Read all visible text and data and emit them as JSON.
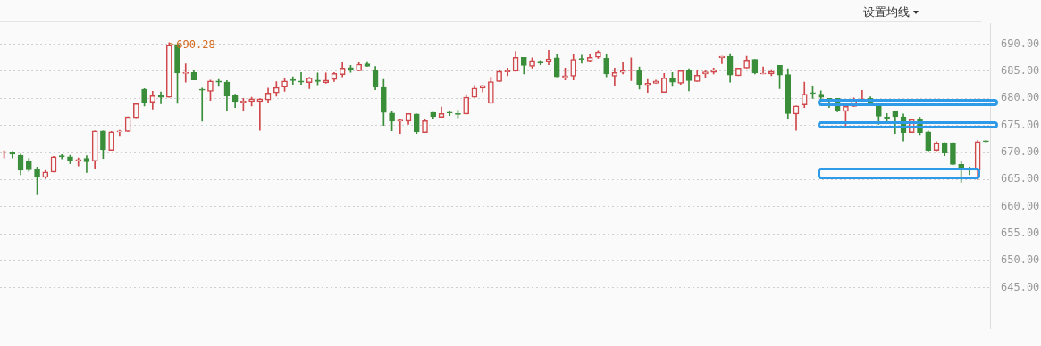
{
  "chart_data": {
    "type": "candlestick",
    "categories": [
      null,
      null,
      null,
      null,
      null,
      null,
      null,
      null,
      null,
      null,
      null,
      null,
      null,
      null,
      null,
      null,
      null,
      null,
      null,
      null,
      null,
      null,
      null,
      null,
      null,
      null,
      null,
      null,
      null,
      null,
      null,
      null,
      null,
      null,
      null,
      null,
      null,
      null,
      null,
      null,
      null,
      null,
      null,
      null,
      null,
      null,
      null,
      null,
      null,
      null,
      null,
      null,
      null,
      null,
      null,
      null,
      null,
      null,
      null,
      null,
      null,
      null,
      null,
      null,
      null,
      null,
      null,
      null,
      null,
      null,
      null,
      null,
      null,
      null,
      null,
      null,
      null,
      null,
      null,
      null,
      null,
      null,
      null,
      null,
      null,
      null,
      null,
      null,
      null,
      null,
      null,
      null,
      null,
      null,
      null,
      null,
      null,
      null,
      null,
      null,
      null,
      null,
      null,
      null,
      null,
      null,
      null,
      null,
      null,
      null,
      null,
      null,
      null,
      null,
      null,
      null,
      null,
      null,
      null,
      null
    ],
    "ohlc": [
      [
        670,
        670.3,
        669,
        670.1
      ],
      [
        670,
        670.2,
        669,
        669.7
      ],
      [
        669.5,
        669.7,
        665.9,
        666.7
      ],
      [
        668.3,
        668.9,
        666.5,
        666.8
      ],
      [
        666.9,
        667.3,
        662.2,
        665.4
      ],
      [
        665.4,
        666.7,
        665.2,
        666.4
      ],
      [
        666.4,
        669.3,
        666.4,
        669.2
      ],
      [
        669.4,
        669.6,
        668.8,
        669.2
      ],
      [
        669.2,
        669.5,
        667.9,
        668.5
      ],
      [
        668.5,
        669,
        667.5,
        668.7
      ],
      [
        668.9,
        669.4,
        666.3,
        668.3
      ],
      [
        668.4,
        674,
        667.1,
        674
      ],
      [
        674,
        674,
        668.9,
        670.5
      ],
      [
        670.4,
        673.9,
        670.4,
        673.8
      ],
      [
        673.8,
        674.1,
        673,
        674
      ],
      [
        673.9,
        676.6,
        673.9,
        676.6
      ],
      [
        676.4,
        679.1,
        676.4,
        679
      ],
      [
        681.7,
        681.8,
        678.6,
        679.2
      ],
      [
        679.3,
        681.3,
        678,
        680.5
      ],
      [
        680.5,
        681.2,
        679,
        680.2
      ],
      [
        680.2,
        690.28,
        680.2,
        689.8
      ],
      [
        689.9,
        690.1,
        679.1,
        684.7
      ],
      [
        684.6,
        686.4,
        683,
        684.8
      ],
      [
        684.8,
        685.2,
        683.4,
        683.4
      ],
      [
        681.7,
        681.9,
        675.8,
        681.5
      ],
      [
        681.3,
        683.4,
        679.6,
        683.2
      ],
      [
        683.2,
        683.5,
        682.2,
        683
      ],
      [
        683,
        683.3,
        677.8,
        680.4
      ],
      [
        680.5,
        680.8,
        678.3,
        679.4
      ],
      [
        679.3,
        680,
        677.8,
        679.5
      ],
      [
        679.4,
        680.2,
        678.6,
        679.9
      ],
      [
        679.4,
        679.9,
        674.1,
        679.9
      ],
      [
        679.7,
        681.9,
        679.2,
        681
      ],
      [
        681,
        683.1,
        680.4,
        682
      ],
      [
        682.1,
        683.7,
        681.3,
        683.2
      ],
      [
        683.5,
        684,
        682.6,
        683.3
      ],
      [
        683.2,
        684.8,
        682.6,
        683
      ],
      [
        682.9,
        683.9,
        681.8,
        683.8
      ],
      [
        683.4,
        684.7,
        682.5,
        683.1
      ],
      [
        682.9,
        684.7,
        682.8,
        683.4
      ],
      [
        683.5,
        684.8,
        683.1,
        684.6
      ],
      [
        684.4,
        686.6,
        684,
        685.6
      ],
      [
        685.7,
        686.1,
        684.8,
        685.3
      ],
      [
        685.1,
        686.7,
        685.1,
        686.3
      ],
      [
        686.4,
        686.8,
        685.9,
        685.9
      ],
      [
        685.1,
        685.9,
        681.6,
        682.1
      ],
      [
        682,
        683.5,
        675,
        677.4
      ],
      [
        677.3,
        677.6,
        674,
        675.8
      ],
      [
        675.8,
        676.1,
        673.5,
        676
      ],
      [
        675.8,
        677.2,
        675.2,
        677.2
      ],
      [
        677.1,
        677.1,
        673.5,
        673.8
      ],
      [
        673.7,
        676.2,
        673.7,
        675.9
      ],
      [
        677.4,
        677.4,
        676.3,
        676.6
      ],
      [
        676.5,
        678.4,
        676.5,
        677.2
      ],
      [
        677.4,
        677.7,
        676.8,
        677.3
      ],
      [
        677.2,
        677.8,
        676.4,
        677
      ],
      [
        677.1,
        680.7,
        677.1,
        680.2
      ],
      [
        680.2,
        682.4,
        680.2,
        681.9
      ],
      [
        681.9,
        682.4,
        681.2,
        682.4
      ],
      [
        679.1,
        683.9,
        679.1,
        683.1
      ],
      [
        683.1,
        685.2,
        683.1,
        685
      ],
      [
        684.9,
        685.6,
        684.2,
        685.1
      ],
      [
        685,
        688.7,
        685,
        687.6
      ],
      [
        687.6,
        687.6,
        684.5,
        686.1
      ],
      [
        685.9,
        687.5,
        685.6,
        687
      ],
      [
        686.9,
        687,
        686.2,
        686.5
      ],
      [
        686.8,
        688.9,
        686.2,
        687.3
      ],
      [
        687.5,
        688.1,
        684,
        684
      ],
      [
        683.8,
        685.6,
        683.4,
        684.2
      ],
      [
        684.1,
        688.1,
        683.4,
        687.2
      ],
      [
        687.3,
        688,
        686.5,
        687.2
      ],
      [
        686.9,
        688.1,
        686.7,
        687.6
      ],
      [
        687.6,
        688.8,
        687.4,
        688.6
      ],
      [
        687.4,
        688.1,
        684,
        684.5
      ],
      [
        684.1,
        685.6,
        682.3,
        684.8
      ],
      [
        684.8,
        686.6,
        684.5,
        685.1
      ],
      [
        685.1,
        687.5,
        683.3,
        685.2
      ],
      [
        685.2,
        685.8,
        681.7,
        682.6
      ],
      [
        682.5,
        683.5,
        681.1,
        682.8
      ],
      [
        682.8,
        683.4,
        682.8,
        683.2
      ],
      [
        681.1,
        684.6,
        681.1,
        683.8
      ],
      [
        683.8,
        684.8,
        682.2,
        683
      ],
      [
        682.8,
        685.1,
        682.6,
        685.1
      ],
      [
        685.1,
        685.5,
        681.4,
        683.3
      ],
      [
        683.1,
        685.1,
        683.1,
        684.3
      ],
      [
        684.5,
        685.2,
        683.9,
        684.9
      ],
      [
        684.8,
        685.6,
        684.5,
        685.3
      ],
      [
        687.5,
        687.8,
        686.4,
        687.8
      ],
      [
        687.8,
        688.3,
        683,
        684.3
      ],
      [
        684.2,
        685.6,
        684.2,
        685.6
      ],
      [
        685.6,
        687.8,
        685.6,
        687.1
      ],
      [
        687.2,
        687.2,
        684.5,
        684.7
      ],
      [
        684.5,
        685.8,
        684.5,
        684.6
      ],
      [
        684.5,
        685.3,
        684.2,
        685
      ],
      [
        686.1,
        686.1,
        681.8,
        684.3
      ],
      [
        684.4,
        685.5,
        676.2,
        677.2
      ],
      [
        677.1,
        678.6,
        674.1,
        678.6
      ],
      [
        678.8,
        683,
        678.3,
        680.8
      ],
      [
        681,
        682.3,
        680,
        680.9
      ],
      [
        680.8,
        681.4,
        679.4,
        680.2
      ],
      [
        680,
        680,
        678.3,
        679.5
      ],
      [
        680,
        680,
        677.5,
        677.8
      ],
      [
        677.6,
        679,
        674.7,
        678.5
      ],
      [
        678.5,
        680.1,
        678.5,
        679.7
      ],
      [
        679.7,
        681.5,
        679.6,
        679.9
      ],
      [
        680,
        680.3,
        678.9,
        678.9
      ],
      [
        678.7,
        678.9,
        675.2,
        676.7
      ],
      [
        676.6,
        677.2,
        675.6,
        676.3
      ],
      [
        677.7,
        677.7,
        673.5,
        676.6
      ],
      [
        676.6,
        677.1,
        672.1,
        673.7
      ],
      [
        673.7,
        676.1,
        673.7,
        676.1
      ],
      [
        676.1,
        676.5,
        673.3,
        673.7
      ],
      [
        673.8,
        674,
        670.1,
        670.4
      ],
      [
        670.4,
        672,
        670.3,
        671.8
      ],
      [
        671.8,
        671.8,
        669.4,
        669.9
      ],
      [
        671.8,
        671.8,
        667.7,
        667.8
      ],
      [
        667.8,
        668.3,
        664.5,
        666.9
      ],
      [
        666.8,
        667.3,
        665.9,
        666.7
      ],
      [
        666.7,
        672.2,
        665,
        672
      ],
      [
        672.1,
        672.2,
        671.9,
        672
      ]
    ],
    "ylim": [
      637.4,
      693.9
    ],
    "yticks": [
      {
        "value": 645,
        "label": "645.00"
      },
      {
        "value": 650,
        "label": "650.00"
      },
      {
        "value": 655,
        "label": "655.00"
      },
      {
        "value": 660,
        "label": "660.00"
      },
      {
        "value": 665,
        "label": "665.00"
      },
      {
        "value": 670,
        "label": "670.00"
      },
      {
        "value": 675,
        "label": "675.00"
      },
      {
        "value": 680,
        "label": "680.00"
      },
      {
        "value": 685,
        "label": "685.00"
      },
      {
        "value": 690,
        "label": "690.00"
      }
    ],
    "grid": "y",
    "tick_labels": "y",
    "annotations": [
      "设置均线",
      "690.28"
    ]
  }
}
